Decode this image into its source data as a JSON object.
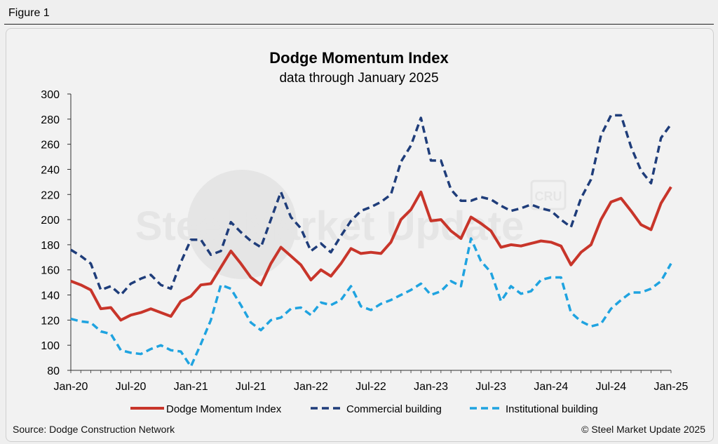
{
  "figure_label": "Figure 1",
  "source": "Source: Dodge Construction Network",
  "copyright": "© Steel Market Update 2025",
  "watermark": "Steel Market Update",
  "watermark_badge": "CRU",
  "colors": {
    "dmi": "#c8352a",
    "commercial": "#1f3d7a",
    "institutional": "#1fa3e0",
    "axis": "#333333"
  },
  "chart_data": {
    "type": "line",
    "title": "Dodge Momentum Index",
    "subtitle": "data through January 2025",
    "xlabel": "",
    "ylabel": "",
    "ylim": [
      80,
      300
    ],
    "yticks": [
      80,
      100,
      120,
      140,
      160,
      180,
      200,
      220,
      240,
      260,
      280,
      300
    ],
    "x_tick_labels": [
      "Jan-20",
      "Jul-20",
      "Jan-21",
      "Jul-21",
      "Jan-22",
      "Jul-22",
      "Jan-23",
      "Jul-23",
      "Jan-24",
      "Jul-24",
      "Jan-25"
    ],
    "x": [
      "Jan-20",
      "Feb-20",
      "Mar-20",
      "Apr-20",
      "May-20",
      "Jun-20",
      "Jul-20",
      "Aug-20",
      "Sep-20",
      "Oct-20",
      "Nov-20",
      "Dec-20",
      "Jan-21",
      "Feb-21",
      "Mar-21",
      "Apr-21",
      "May-21",
      "Jun-21",
      "Jul-21",
      "Aug-21",
      "Sep-21",
      "Oct-21",
      "Nov-21",
      "Dec-21",
      "Jan-22",
      "Feb-22",
      "Mar-22",
      "Apr-22",
      "May-22",
      "Jun-22",
      "Jul-22",
      "Aug-22",
      "Sep-22",
      "Oct-22",
      "Nov-22",
      "Dec-22",
      "Jan-23",
      "Feb-23",
      "Mar-23",
      "Apr-23",
      "May-23",
      "Jun-23",
      "Jul-23",
      "Aug-23",
      "Sep-23",
      "Oct-23",
      "Nov-23",
      "Dec-23",
      "Jan-24",
      "Feb-24",
      "Mar-24",
      "Apr-24",
      "May-24",
      "Jun-24",
      "Jul-24",
      "Aug-24",
      "Sep-24",
      "Oct-24",
      "Nov-24",
      "Dec-24",
      "Jan-25"
    ],
    "legend_position": "bottom",
    "series": [
      {
        "name": "Dodge Momentum Index",
        "style": "solid",
        "values": [
          151,
          148,
          144,
          129,
          130,
          120,
          124,
          126,
          129,
          126,
          123,
          135,
          139,
          148,
          149,
          162,
          175,
          165,
          154,
          148,
          165,
          178,
          171,
          164,
          152,
          160,
          155,
          165,
          177,
          173,
          174,
          173,
          182,
          200,
          208,
          222,
          199,
          200,
          191,
          185,
          202,
          197,
          191,
          178,
          180,
          179,
          181,
          183,
          182,
          179,
          164,
          174,
          180,
          200,
          214,
          217,
          207,
          196,
          192,
          213,
          226
        ]
      },
      {
        "name": "Commercial building",
        "style": "dashed",
        "values": [
          176,
          171,
          165,
          144,
          147,
          140,
          149,
          153,
          156,
          148,
          145,
          166,
          184,
          184,
          172,
          175,
          198,
          190,
          183,
          178,
          200,
          222,
          202,
          193,
          175,
          181,
          174,
          187,
          199,
          207,
          210,
          214,
          220,
          246,
          259,
          281,
          247,
          247,
          224,
          215,
          215,
          218,
          216,
          211,
          207,
          209,
          212,
          209,
          207,
          200,
          194,
          217,
          232,
          267,
          283,
          283,
          258,
          239,
          229,
          265,
          276
        ]
      },
      {
        "name": "Institutional building",
        "style": "dashed",
        "values": [
          121,
          119,
          118,
          111,
          109,
          96,
          94,
          93,
          97,
          100,
          96,
          95,
          83,
          101,
          120,
          148,
          145,
          132,
          118,
          112,
          120,
          122,
          129,
          130,
          124,
          134,
          132,
          136,
          147,
          131,
          128,
          133,
          136,
          140,
          144,
          149,
          140,
          143,
          151,
          147,
          185,
          167,
          158,
          135,
          147,
          141,
          143,
          152,
          154,
          154,
          126,
          119,
          115,
          117,
          129,
          136,
          142,
          142,
          145,
          151,
          165
        ]
      }
    ]
  }
}
